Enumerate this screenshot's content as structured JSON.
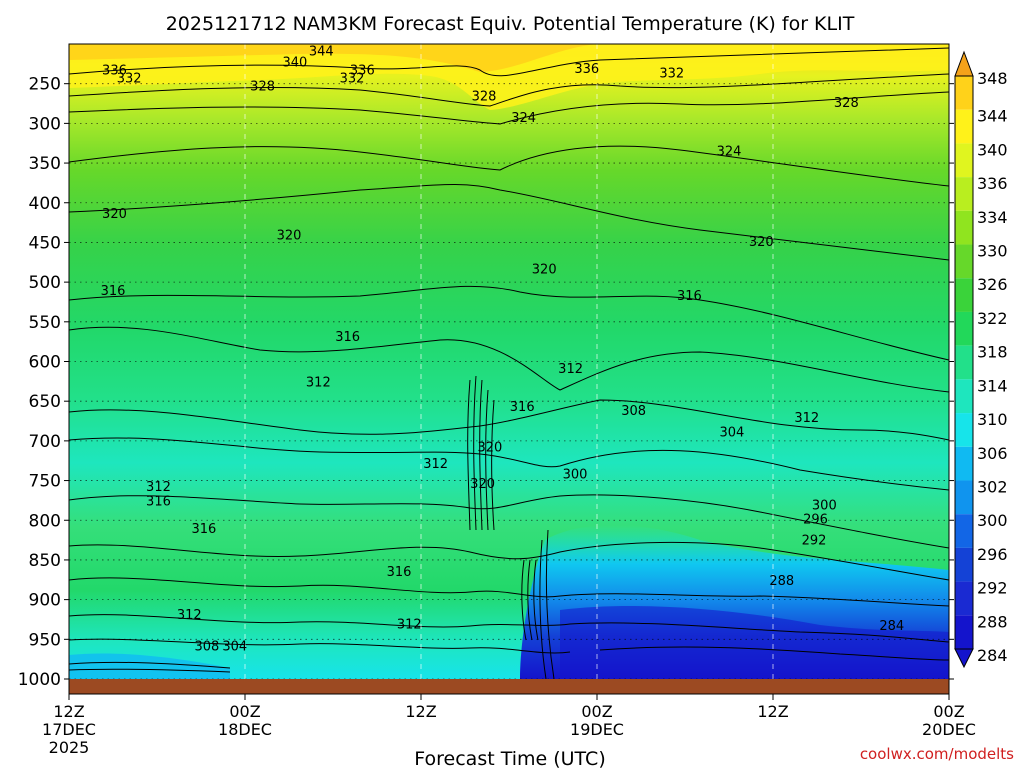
{
  "chart_data": {
    "type": "heatmap",
    "title": "2025121712 NAM3KM Forecast Equiv. Potential Temperature (K) for KLIT",
    "xlabel": "Forecast Time (UTC)",
    "ylabel": "",
    "credit": "coolwx.com/modelts",
    "x_ticks": [
      {
        "hour": 0,
        "lines": [
          "12Z",
          "17DEC",
          "2025"
        ]
      },
      {
        "hour": 12,
        "lines": [
          "00Z",
          "18DEC"
        ]
      },
      {
        "hour": 24,
        "lines": [
          "12Z"
        ]
      },
      {
        "hour": 36,
        "lines": [
          "00Z",
          "19DEC"
        ]
      },
      {
        "hour": 48,
        "lines": [
          "12Z"
        ]
      },
      {
        "hour": 60,
        "lines": [
          "00Z",
          "20DEC"
        ]
      }
    ],
    "xlim": [
      0,
      60
    ],
    "y_ticks": [
      250,
      300,
      350,
      400,
      450,
      500,
      550,
      600,
      650,
      700,
      750,
      800,
      850,
      900,
      950,
      1000
    ],
    "ylim": [
      200,
      1000
    ],
    "y_unit": "hPa",
    "colorbar_levels": [
      348,
      344,
      340,
      336,
      334,
      330,
      326,
      322,
      318,
      314,
      310,
      306,
      302,
      300,
      296,
      292,
      288,
      284
    ],
    "colorbar_colors": [
      "#f4a21a",
      "#ffd21a",
      "#fff21a",
      "#e0f51f",
      "#b9ee1f",
      "#90e41f",
      "#66d82a",
      "#3ad33a",
      "#22d85a",
      "#22e08a",
      "#1ee6be",
      "#17e4ea",
      "#10baf2",
      "#1094ee",
      "#1266e6",
      "#1442d6",
      "#1a2ad2",
      "#1414cc"
    ],
    "contour_labels": [
      {
        "value": "344",
        "hour": 17.2,
        "p": 208
      },
      {
        "value": "340",
        "hour": 15.4,
        "p": 222
      },
      {
        "value": "336",
        "hour": 3.1,
        "p": 232
      },
      {
        "value": "332",
        "hour": 4.1,
        "p": 242
      },
      {
        "value": "336",
        "hour": 20.0,
        "p": 232
      },
      {
        "value": "332",
        "hour": 19.3,
        "p": 242
      },
      {
        "value": "328",
        "hour": 13.2,
        "p": 252
      },
      {
        "value": "336",
        "hour": 35.3,
        "p": 230
      },
      {
        "value": "332",
        "hour": 41.1,
        "p": 236
      },
      {
        "value": "328",
        "hour": 28.3,
        "p": 265
      },
      {
        "value": "328",
        "hour": 53.0,
        "p": 273
      },
      {
        "value": "324",
        "hour": 31.0,
        "p": 292
      },
      {
        "value": "324",
        "hour": 45.0,
        "p": 334
      },
      {
        "value": "320",
        "hour": 3.1,
        "p": 413
      },
      {
        "value": "320",
        "hour": 15.0,
        "p": 440
      },
      {
        "value": "320",
        "hour": 32.4,
        "p": 483
      },
      {
        "value": "320",
        "hour": 47.2,
        "p": 448
      },
      {
        "value": "316",
        "hour": 3.0,
        "p": 510
      },
      {
        "value": "316",
        "hour": 19.0,
        "p": 568
      },
      {
        "value": "316",
        "hour": 42.3,
        "p": 516
      },
      {
        "value": "312",
        "hour": 17.0,
        "p": 625
      },
      {
        "value": "312",
        "hour": 34.2,
        "p": 608
      },
      {
        "value": "316",
        "hour": 30.9,
        "p": 656
      },
      {
        "value": "308",
        "hour": 38.5,
        "p": 661
      },
      {
        "value": "312",
        "hour": 50.3,
        "p": 670
      },
      {
        "value": "304",
        "hour": 45.2,
        "p": 688
      },
      {
        "value": "320",
        "hour": 28.7,
        "p": 707
      },
      {
        "value": "312",
        "hour": 25.0,
        "p": 728
      },
      {
        "value": "312",
        "hour": 6.1,
        "p": 757
      },
      {
        "value": "316",
        "hour": 6.1,
        "p": 775
      },
      {
        "value": "320",
        "hour": 28.2,
        "p": 753
      },
      {
        "value": "300",
        "hour": 34.5,
        "p": 741
      },
      {
        "value": "316",
        "hour": 9.2,
        "p": 810
      },
      {
        "value": "300",
        "hour": 51.5,
        "p": 780
      },
      {
        "value": "296",
        "hour": 50.9,
        "p": 798
      },
      {
        "value": "292",
        "hour": 50.8,
        "p": 824
      },
      {
        "value": "316",
        "hour": 22.5,
        "p": 864
      },
      {
        "value": "288",
        "hour": 48.6,
        "p": 875
      },
      {
        "value": "312",
        "hour": 8.2,
        "p": 918
      },
      {
        "value": "312",
        "hour": 23.2,
        "p": 930
      },
      {
        "value": "308",
        "hour": 9.4,
        "p": 958
      },
      {
        "value": "304",
        "hour": 11.3,
        "p": 958
      },
      {
        "value": "284",
        "hour": 56.1,
        "p": 932
      }
    ]
  }
}
